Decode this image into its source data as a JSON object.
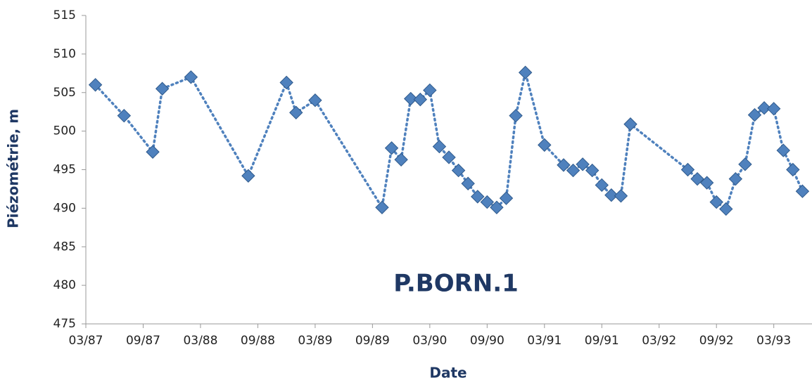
{
  "chart_data": {
    "type": "line",
    "annotation": "P.BORN.1",
    "xlabel": "Date",
    "ylabel": "Piézométrie, m",
    "x": [
      "1987-04",
      "1987-07",
      "1987-10",
      "1987-11",
      "1988-02",
      "1988-08",
      "1988-12",
      "1989-01",
      "1989-03",
      "1989-10",
      "1989-11",
      "1989-12",
      "1990-01",
      "1990-02",
      "1990-03",
      "1990-04",
      "1990-05",
      "1990-06",
      "1990-07",
      "1990-08",
      "1990-09",
      "1990-10",
      "1990-11",
      "1990-12",
      "1991-01",
      "1991-03",
      "1991-05",
      "1991-06",
      "1991-07",
      "1991-08",
      "1991-09",
      "1991-10",
      "1991-11",
      "1991-12",
      "1992-06",
      "1992-07",
      "1992-08",
      "1992-09",
      "1992-10",
      "1992-11",
      "1992-12",
      "1993-01",
      "1993-02",
      "1993-03",
      "1993-04",
      "1993-05",
      "1993-06"
    ],
    "values": [
      506,
      502,
      497.3,
      505.5,
      507,
      494.2,
      506.3,
      502.4,
      504,
      490.1,
      497.8,
      496.3,
      504.2,
      504.1,
      505.3,
      498,
      496.6,
      494.9,
      493.2,
      491.5,
      490.8,
      490.1,
      491.3,
      502,
      507.6,
      498.2,
      495.6,
      494.9,
      495.7,
      494.9,
      493,
      491.7,
      491.6,
      500.9,
      495,
      493.8,
      493.3,
      490.8,
      489.9,
      493.8,
      495.7,
      502.1,
      503,
      502.9,
      497.5,
      495,
      492.2
    ],
    "color": "#4f81bd",
    "xlim": [
      "1987-03",
      "1993-07"
    ],
    "xticks": [
      {
        "value": "1987-03",
        "label": "03/87"
      },
      {
        "value": "1987-09",
        "label": "09/87"
      },
      {
        "value": "1988-03",
        "label": "03/88"
      },
      {
        "value": "1988-09",
        "label": "09/88"
      },
      {
        "value": "1989-03",
        "label": "03/89"
      },
      {
        "value": "1989-09",
        "label": "09/89"
      },
      {
        "value": "1990-03",
        "label": "03/90"
      },
      {
        "value": "1990-09",
        "label": "09/90"
      },
      {
        "value": "1991-03",
        "label": "03/91"
      },
      {
        "value": "1991-09",
        "label": "09/91"
      },
      {
        "value": "1992-03",
        "label": "03/92"
      },
      {
        "value": "1992-09",
        "label": "09/92"
      },
      {
        "value": "1993-03",
        "label": "03/93"
      }
    ],
    "ylim": [
      475,
      515
    ],
    "yticks": [
      475,
      480,
      485,
      490,
      495,
      500,
      505,
      510,
      515
    ],
    "grid": false
  }
}
